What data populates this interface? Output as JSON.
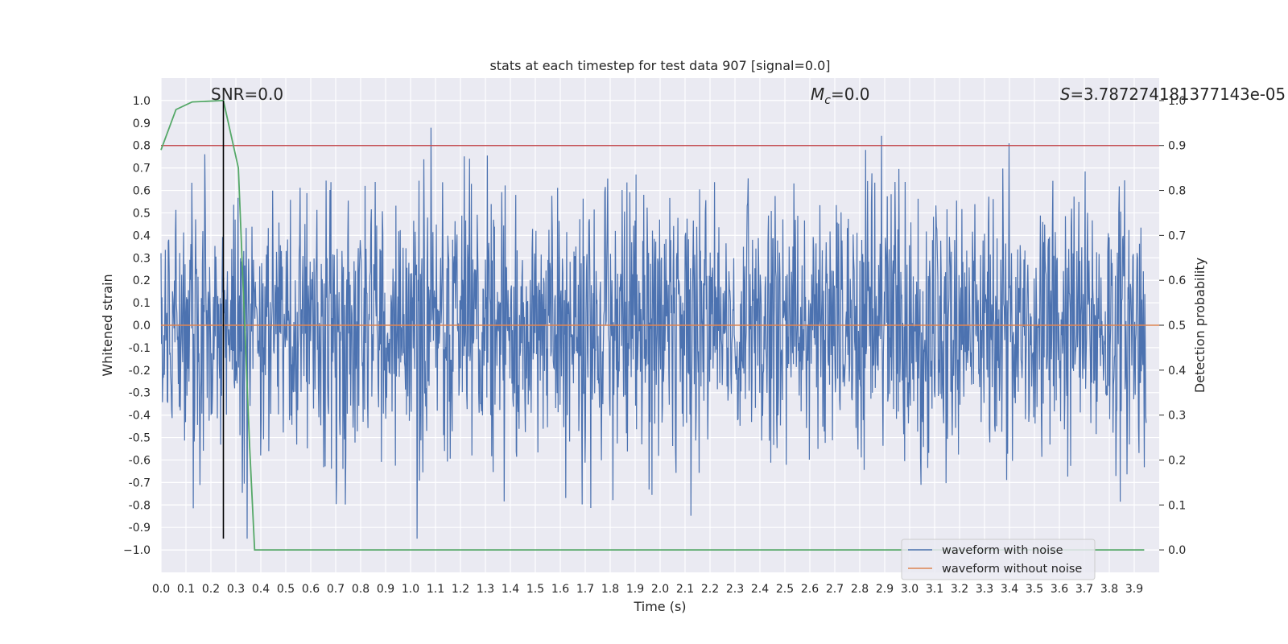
{
  "chart_data": {
    "type": "line",
    "title": "stats at each timestep for test data 907 [signal=0.0]",
    "xlabel": "Time (s)",
    "ylabel_left": "Whitened strain",
    "ylabel_right": "Detection probability",
    "xlim": [
      0.0,
      4.0
    ],
    "ylim_left": [
      -1.1,
      1.1
    ],
    "ylim_right": [
      -0.05,
      1.05
    ],
    "xticks": [
      "0.0",
      "0.1",
      "0.2",
      "0.3",
      "0.4",
      "0.5",
      "0.6",
      "0.7",
      "0.8",
      "0.9",
      "1.0",
      "1.1",
      "1.2",
      "1.3",
      "1.4",
      "1.5",
      "1.6",
      "1.7",
      "1.8",
      "1.9",
      "2.0",
      "2.1",
      "2.2",
      "2.3",
      "2.4",
      "2.5",
      "2.6",
      "2.7",
      "2.8",
      "2.9",
      "3.0",
      "3.1",
      "3.2",
      "3.3",
      "3.4",
      "3.5",
      "3.6",
      "3.7",
      "3.8",
      "3.9"
    ],
    "yticks_left": [
      "1.0",
      "0.9",
      "0.8",
      "0.7",
      "0.6",
      "0.5",
      "0.4",
      "0.3",
      "0.2",
      "0.1",
      "0.0",
      "-0.1",
      "-0.2",
      "-0.3",
      "-0.4",
      "-0.5",
      "-0.6",
      "-0.7",
      "-0.8",
      "-0.9",
      "−1.0"
    ],
    "yticks_right": [
      "1.0",
      "0.9",
      "0.8",
      "0.7",
      "0.6",
      "0.5",
      "0.4",
      "0.3",
      "0.2",
      "0.1",
      "0.0"
    ],
    "annotations": {
      "snr": "SNR=0.0",
      "mc_symbol": "M",
      "mc_sub": "c",
      "mc_value": "=0.0",
      "s_symbol": "S",
      "s_value": "=3.787274181377143e-05"
    },
    "series": [
      {
        "name": "waveform with noise",
        "axis": "left",
        "color": "#4c72b0",
        "description": "whitened noisy strain, dense random samples between about -0.95 and 1.0",
        "amplitude_range": [
          -0.95,
          1.0
        ],
        "samples": 2048
      },
      {
        "name": "waveform without noise",
        "axis": "left",
        "color": "#dd8452",
        "values_constant": 0.0
      },
      {
        "name": "detection probability",
        "axis": "right",
        "color": "#55a868",
        "in_legend": false,
        "x": [
          0.0,
          0.06,
          0.125,
          0.25,
          0.31,
          0.355,
          0.375,
          0.5,
          1.0,
          2.0,
          3.0,
          3.94
        ],
        "y": [
          0.89,
          0.98,
          0.997,
          1.0,
          0.85,
          0.23,
          0.0,
          0.0,
          0.0,
          0.0,
          0.0,
          0.0
        ]
      }
    ],
    "threshold": {
      "axis": "right",
      "value": 0.9,
      "color": "#c44e52"
    },
    "vline": {
      "x": 0.25,
      "y_from": -0.95,
      "y_to": 1.0,
      "color": "#000000"
    },
    "legend": {
      "position": "lower-right",
      "entries": [
        "waveform with noise",
        "waveform without noise"
      ]
    }
  }
}
